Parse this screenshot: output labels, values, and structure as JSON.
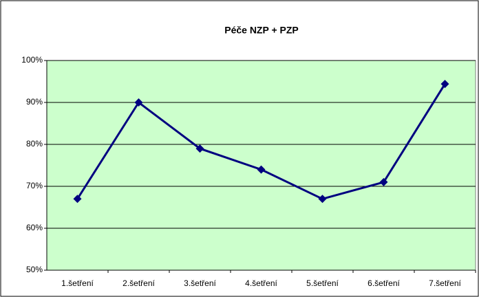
{
  "chart_data": {
    "type": "line",
    "title": "Péče NZP + PZP",
    "categories": [
      "1.šetření",
      "2.šetření",
      "3.šetření",
      "4.šetření",
      "5.šetření",
      "6.šetření",
      "7.šetření"
    ],
    "series": [
      {
        "name": "Péče NZP + PZP",
        "color": "#000080",
        "values": [
          67,
          90,
          79,
          74,
          67,
          71,
          94.4
        ]
      }
    ],
    "ylim": [
      50,
      100
    ],
    "yticks": [
      {
        "value": 50,
        "label": "50%"
      },
      {
        "value": 60,
        "label": "60%"
      },
      {
        "value": 70,
        "label": "70%"
      },
      {
        "value": 80,
        "label": "80%"
      },
      {
        "value": 90,
        "label": "90%"
      },
      {
        "value": 100,
        "label": "100%"
      }
    ],
    "grid": true,
    "plot_background": "#ccffcc"
  }
}
